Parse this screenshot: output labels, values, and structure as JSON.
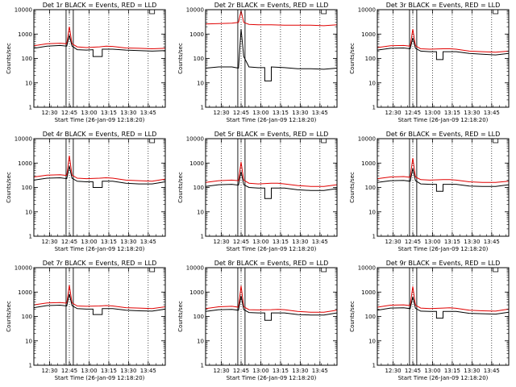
{
  "chart_data": [
    {
      "type": "line",
      "title": "Det 1r  BLACK = Events, RED = LLD",
      "xlabel": "Start Time (26-Jan-09 12:18:20)",
      "ylabel": "Counts/sec",
      "x_tick_labels": [
        "12:30",
        "12:45",
        "13:00",
        "13:15",
        "13:30",
        "13:45"
      ],
      "x_ticks_min": [
        12,
        27,
        42,
        57,
        72,
        87
      ],
      "y_tick_labels": [
        "1",
        "10",
        "100",
        "1000",
        "10000"
      ],
      "xlim_min": [
        0,
        100
      ],
      "ylim": [
        1,
        10000
      ],
      "y_scale": "log",
      "grid_x_min": [
        12,
        27,
        42,
        57,
        72,
        87
      ],
      "series": [
        {
          "color": "#e00000",
          "x": [
            0,
            10,
            20,
            25,
            27,
            29,
            33,
            40,
            50,
            55,
            60,
            70,
            80,
            90,
            100
          ],
          "y": [
            330,
            400,
            420,
            400,
            2000,
            400,
            300,
            280,
            300,
            320,
            310,
            270,
            260,
            250,
            260
          ]
        },
        {
          "color": "#000000",
          "x": [
            0,
            10,
            20,
            25,
            27,
            29,
            33,
            40,
            45,
            45,
            52,
            52,
            60,
            70,
            80,
            90,
            100
          ],
          "y": [
            260,
            320,
            340,
            320,
            900,
            320,
            230,
            220,
            230,
            120,
            120,
            240,
            240,
            220,
            210,
            200,
            210
          ]
        }
      ]
    },
    {
      "type": "line",
      "title": "Det 2r  BLACK = Events, RED = LLD",
      "xlabel": "Start Time (26-Jan-09 12:18:20)",
      "ylabel": "Counts/sec",
      "x_tick_labels": [
        "12:30",
        "12:45",
        "13:00",
        "13:15",
        "13:30",
        "13:45"
      ],
      "x_ticks_min": [
        12,
        27,
        42,
        57,
        72,
        87
      ],
      "y_tick_labels": [
        "1",
        "10",
        "100",
        "1000",
        "10000"
      ],
      "xlim_min": [
        0,
        100
      ],
      "ylim": [
        1,
        10000
      ],
      "y_scale": "log",
      "grid_x_min": [
        12,
        27,
        42,
        57,
        72,
        87
      ],
      "series": [
        {
          "color": "#e00000",
          "x": [
            0,
            10,
            20,
            25,
            27,
            29,
            33,
            40,
            50,
            60,
            70,
            80,
            90,
            100
          ],
          "y": [
            2600,
            2700,
            2800,
            3000,
            9000,
            3000,
            2500,
            2400,
            2400,
            2300,
            2300,
            2300,
            2200,
            2400
          ]
        },
        {
          "color": "#000000",
          "x": [
            0,
            10,
            20,
            25,
            27,
            29,
            33,
            40,
            45,
            45,
            50,
            50,
            60,
            70,
            80,
            90,
            100
          ],
          "y": [
            40,
            45,
            45,
            40,
            1600,
            120,
            45,
            42,
            42,
            12,
            12,
            45,
            42,
            38,
            38,
            36,
            40
          ]
        }
      ]
    },
    {
      "type": "line",
      "title": "Det 3r  BLACK = Events, RED = LLD",
      "xlabel": "Start Time (26-Jan-09 12:18:20)",
      "ylabel": "Counts/sec",
      "x_tick_labels": [
        "12:30",
        "12:45",
        "13:00",
        "13:15",
        "13:30",
        "13:45"
      ],
      "x_ticks_min": [
        12,
        27,
        42,
        57,
        72,
        87
      ],
      "y_tick_labels": [
        "1",
        "10",
        "100",
        "1000",
        "10000"
      ],
      "xlim_min": [
        0,
        100
      ],
      "ylim": [
        1,
        10000
      ],
      "y_scale": "log",
      "grid_x_min": [
        12,
        27,
        42,
        57,
        72,
        87
      ],
      "series": [
        {
          "color": "#e00000",
          "x": [
            0,
            10,
            20,
            25,
            27,
            29,
            33,
            40,
            50,
            55,
            60,
            70,
            80,
            90,
            100
          ],
          "y": [
            280,
            330,
            340,
            320,
            1600,
            330,
            250,
            240,
            250,
            250,
            240,
            200,
            190,
            180,
            200
          ]
        },
        {
          "color": "#000000",
          "x": [
            0,
            10,
            20,
            25,
            27,
            29,
            33,
            40,
            45,
            45,
            50,
            50,
            60,
            70,
            80,
            90,
            100
          ],
          "y": [
            220,
            260,
            270,
            250,
            700,
            260,
            200,
            190,
            190,
            90,
            90,
            190,
            190,
            160,
            150,
            140,
            160
          ]
        }
      ]
    },
    {
      "type": "line",
      "title": "Det 4r  BLACK = Events, RED = LLD",
      "xlabel": "Start Time (26-Jan-09 12:18:20)",
      "ylabel": "Counts/sec",
      "x_tick_labels": [
        "12:30",
        "12:45",
        "13:00",
        "13:15",
        "13:30",
        "13:45"
      ],
      "x_ticks_min": [
        12,
        27,
        42,
        57,
        72,
        87
      ],
      "y_tick_labels": [
        "1",
        "10",
        "100",
        "1000",
        "10000"
      ],
      "xlim_min": [
        0,
        100
      ],
      "ylim": [
        1,
        10000
      ],
      "y_scale": "log",
      "grid_x_min": [
        12,
        27,
        42,
        57,
        72,
        87
      ],
      "series": [
        {
          "color": "#e00000",
          "x": [
            0,
            10,
            20,
            25,
            27,
            29,
            33,
            40,
            50,
            55,
            60,
            70,
            80,
            90,
            100
          ],
          "y": [
            270,
            320,
            330,
            310,
            2000,
            320,
            240,
            230,
            240,
            250,
            240,
            200,
            190,
            180,
            220
          ]
        },
        {
          "color": "#000000",
          "x": [
            0,
            10,
            20,
            25,
            27,
            29,
            33,
            40,
            45,
            45,
            52,
            52,
            60,
            70,
            80,
            90,
            100
          ],
          "y": [
            200,
            240,
            250,
            230,
            750,
            240,
            180,
            170,
            170,
            100,
            100,
            180,
            180,
            150,
            140,
            140,
            170
          ]
        }
      ]
    },
    {
      "type": "line",
      "title": "Det 5r  BLACK = Events, RED = LLD",
      "xlabel": "Start Time (26-Jan-09 12:18:20)",
      "ylabel": "Counts/sec",
      "x_tick_labels": [
        "12:30",
        "12:45",
        "13:00",
        "13:15",
        "13:30",
        "13:45"
      ],
      "x_ticks_min": [
        12,
        27,
        42,
        57,
        72,
        87
      ],
      "y_tick_labels": [
        "1",
        "10",
        "100",
        "1000",
        "10000"
      ],
      "xlim_min": [
        0,
        100
      ],
      "ylim": [
        1,
        10000
      ],
      "y_scale": "log",
      "grid_x_min": [
        12,
        27,
        42,
        57,
        72,
        87
      ],
      "series": [
        {
          "color": "#e00000",
          "x": [
            0,
            10,
            20,
            25,
            27,
            29,
            33,
            40,
            50,
            55,
            60,
            70,
            80,
            90,
            100
          ],
          "y": [
            160,
            190,
            200,
            190,
            1100,
            200,
            150,
            140,
            150,
            150,
            140,
            120,
            110,
            110,
            130
          ]
        },
        {
          "color": "#000000",
          "x": [
            0,
            10,
            20,
            25,
            27,
            29,
            33,
            40,
            45,
            45,
            50,
            50,
            60,
            70,
            80,
            90,
            100
          ],
          "y": [
            110,
            130,
            135,
            125,
            450,
            130,
            100,
            95,
            95,
            35,
            35,
            95,
            95,
            80,
            75,
            75,
            90
          ]
        }
      ]
    },
    {
      "type": "line",
      "title": "Det 6r  BLACK = Events, RED = LLD",
      "xlabel": "Start Time (26-Jan-09 12:18:20)",
      "ylabel": "Counts/sec",
      "x_tick_labels": [
        "12:30",
        "12:45",
        "13:00",
        "13:15",
        "13:30",
        "13:45"
      ],
      "x_ticks_min": [
        12,
        27,
        42,
        57,
        72,
        87
      ],
      "y_tick_labels": [
        "1",
        "10",
        "100",
        "1000",
        "10000"
      ],
      "xlim_min": [
        0,
        100
      ],
      "ylim": [
        1,
        10000
      ],
      "y_scale": "log",
      "grid_x_min": [
        12,
        27,
        42,
        57,
        72,
        87
      ],
      "series": [
        {
          "color": "#e00000",
          "x": [
            0,
            10,
            20,
            25,
            27,
            29,
            33,
            40,
            50,
            55,
            60,
            70,
            80,
            90,
            100
          ],
          "y": [
            230,
            270,
            280,
            260,
            1600,
            270,
            210,
            200,
            210,
            210,
            200,
            170,
            160,
            160,
            180
          ]
        },
        {
          "color": "#000000",
          "x": [
            0,
            10,
            20,
            25,
            27,
            29,
            33,
            40,
            45,
            45,
            50,
            50,
            60,
            70,
            80,
            90,
            100
          ],
          "y": [
            160,
            190,
            195,
            180,
            600,
            190,
            140,
            135,
            135,
            70,
            70,
            135,
            135,
            115,
            110,
            110,
            130
          ]
        }
      ]
    },
    {
      "type": "line",
      "title": "Det 7r  BLACK = Events, RED = LLD",
      "xlabel": "Start Time (26-Jan-09 12:18:20)",
      "ylabel": "Counts/sec",
      "x_tick_labels": [
        "12:30",
        "12:45",
        "13:00",
        "13:15",
        "13:30",
        "13:45"
      ],
      "x_ticks_min": [
        12,
        27,
        42,
        57,
        72,
        87
      ],
      "y_tick_labels": [
        "1",
        "10",
        "100",
        "1000",
        "10000"
      ],
      "xlim_min": [
        0,
        100
      ],
      "ylim": [
        1,
        10000
      ],
      "y_scale": "log",
      "grid_x_min": [
        12,
        27,
        42,
        57,
        72,
        87
      ],
      "series": [
        {
          "color": "#e00000",
          "x": [
            0,
            10,
            20,
            25,
            27,
            29,
            33,
            40,
            50,
            55,
            60,
            70,
            80,
            90,
            100
          ],
          "y": [
            300,
            360,
            370,
            350,
            1900,
            360,
            270,
            260,
            270,
            280,
            270,
            230,
            220,
            210,
            250
          ]
        },
        {
          "color": "#000000",
          "x": [
            0,
            10,
            20,
            25,
            27,
            29,
            33,
            40,
            45,
            45,
            52,
            52,
            60,
            70,
            80,
            90,
            100
          ],
          "y": [
            230,
            280,
            290,
            270,
            850,
            280,
            210,
            200,
            200,
            120,
            120,
            210,
            210,
            180,
            170,
            165,
            200
          ]
        }
      ]
    },
    {
      "type": "line",
      "title": "Det 8r  BLACK = Events, RED = LLD",
      "xlabel": "Start Time (26-Jan-09 12:18:20)",
      "ylabel": "Counts/sec",
      "x_tick_labels": [
        "12:30",
        "12:45",
        "13:00",
        "13:15",
        "13:30",
        "13:45"
      ],
      "x_ticks_min": [
        12,
        27,
        42,
        57,
        72,
        87
      ],
      "y_tick_labels": [
        "1",
        "10",
        "100",
        "1000",
        "10000"
      ],
      "xlim_min": [
        0,
        100
      ],
      "ylim": [
        1,
        10000
      ],
      "y_scale": "log",
      "grid_x_min": [
        12,
        27,
        42,
        57,
        72,
        87
      ],
      "series": [
        {
          "color": "#e00000",
          "x": [
            0,
            10,
            20,
            25,
            27,
            29,
            33,
            40,
            50,
            55,
            60,
            70,
            80,
            90,
            100
          ],
          "y": [
            210,
            250,
            260,
            240,
            1800,
            250,
            190,
            185,
            190,
            195,
            190,
            160,
            150,
            150,
            180
          ]
        },
        {
          "color": "#000000",
          "x": [
            0,
            10,
            20,
            25,
            27,
            29,
            33,
            40,
            45,
            45,
            50,
            50,
            60,
            70,
            80,
            90,
            100
          ],
          "y": [
            160,
            190,
            195,
            180,
            700,
            190,
            145,
            140,
            140,
            70,
            70,
            140,
            140,
            120,
            115,
            115,
            140
          ]
        }
      ]
    },
    {
      "type": "line",
      "title": "Det 9r  BLACK = Events, RED = LLD",
      "xlabel": "Start Time (26-Jan-09 12:18:20)",
      "ylabel": "Counts/sec",
      "x_tick_labels": [
        "12:30",
        "12:45",
        "13:00",
        "13:15",
        "13:30",
        "13:45"
      ],
      "x_ticks_min": [
        12,
        27,
        42,
        57,
        72,
        87
      ],
      "y_tick_labels": [
        "1",
        "10",
        "100",
        "1000",
        "10000"
      ],
      "xlim_min": [
        0,
        100
      ],
      "ylim": [
        1,
        10000
      ],
      "y_scale": "log",
      "grid_x_min": [
        12,
        27,
        42,
        57,
        72,
        87
      ],
      "series": [
        {
          "color": "#e00000",
          "x": [
            0,
            10,
            20,
            25,
            27,
            29,
            33,
            40,
            50,
            55,
            60,
            70,
            80,
            90,
            100
          ],
          "y": [
            240,
            290,
            300,
            280,
            1700,
            290,
            220,
            210,
            220,
            225,
            215,
            180,
            170,
            165,
            200
          ]
        },
        {
          "color": "#000000",
          "x": [
            0,
            10,
            20,
            25,
            27,
            29,
            33,
            40,
            45,
            45,
            50,
            50,
            60,
            70,
            80,
            90,
            100
          ],
          "y": [
            180,
            220,
            225,
            210,
            650,
            215,
            165,
            160,
            160,
            85,
            85,
            160,
            160,
            135,
            130,
            125,
            150
          ]
        }
      ]
    }
  ]
}
